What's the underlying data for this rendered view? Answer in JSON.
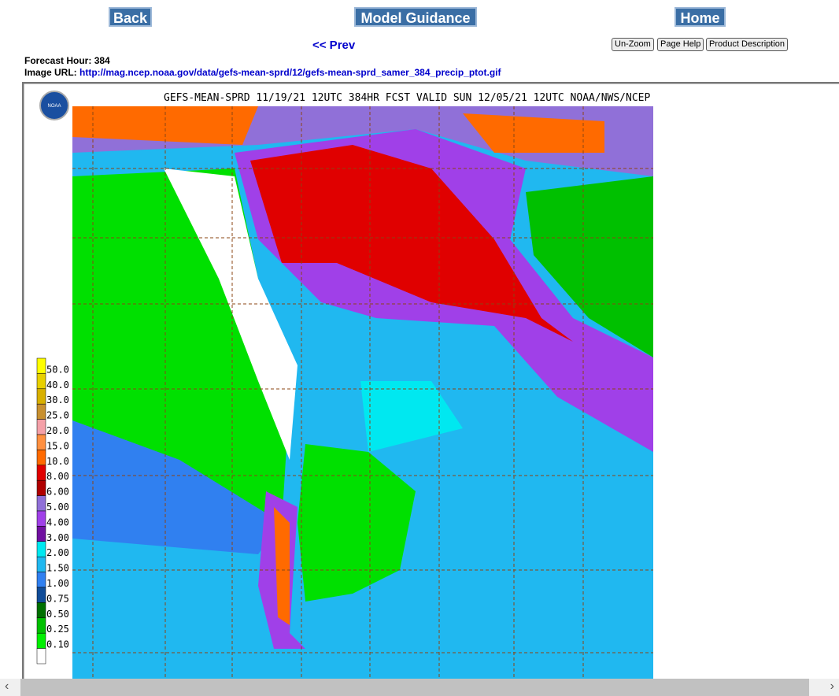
{
  "nav": {
    "back": "Back",
    "model_guidance": "Model Guidance",
    "home": "Home"
  },
  "prev": "<< Prev",
  "tools": [
    "Un-Zoom",
    "Page Help",
    "Product Description"
  ],
  "info": {
    "forecast_hour_label": "Forecast Hour:",
    "forecast_hour": "384",
    "image_url_label": "Image URL:",
    "image_url": "http://mag.ncep.noaa.gov/data/gefs-mean-sprd/12/gefs-mean-sprd_samer_384_precip_ptot.gif"
  },
  "map": {
    "logo": "NOAA",
    "title": "GEFS-MEAN-SPRD 11/19/21 12UTC 384HR FCST VALID SUN 12/05/21 12UTC NOAA/NWS/NCEP",
    "legend": [
      {
        "label": "50.0",
        "color": "#ffff00"
      },
      {
        "label": "40.0",
        "color": "#e8d000"
      },
      {
        "label": "30.0",
        "color": "#d8b000"
      },
      {
        "label": "25.0",
        "color": "#c89030"
      },
      {
        "label": "20.0",
        "color": "#f4a0a8"
      },
      {
        "label": "15.0",
        "color": "#ff9040"
      },
      {
        "label": "10.0",
        "color": "#ff6a00"
      },
      {
        "label": "8.00",
        "color": "#e00000"
      },
      {
        "label": "6.00",
        "color": "#b00000"
      },
      {
        "label": "5.00",
        "color": "#9070d8"
      },
      {
        "label": "4.00",
        "color": "#a040e8"
      },
      {
        "label": "3.00",
        "color": "#7010a0"
      },
      {
        "label": "2.00",
        "color": "#00e8f0"
      },
      {
        "label": "1.50",
        "color": "#20b8f0"
      },
      {
        "label": "1.00",
        "color": "#3080f0"
      },
      {
        "label": "0.75",
        "color": "#104c98"
      },
      {
        "label": "0.50",
        "color": "#007000"
      },
      {
        "label": "0.25",
        "color": "#00c000"
      },
      {
        "label": "0.10",
        "color": "#00f000"
      }
    ]
  }
}
